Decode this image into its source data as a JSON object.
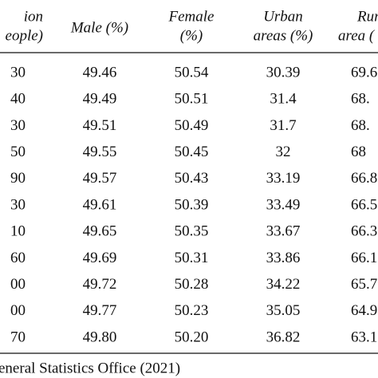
{
  "table": {
    "header": [
      [
        "ion",
        "eople)"
      ],
      [
        "Male (%)"
      ],
      [
        "Female",
        "(%)"
      ],
      [
        "Urban",
        "areas (%)"
      ],
      [
        "Rur",
        "area ("
      ]
    ],
    "rows": [
      [
        "30",
        "49.46",
        "50.54",
        "30.39",
        "69.6"
      ],
      [
        "40",
        "49.49",
        "50.51",
        "31.4",
        "68."
      ],
      [
        "30",
        "49.51",
        "50.49",
        "31.7",
        "68."
      ],
      [
        "50",
        "49.55",
        "50.45",
        "32",
        "68"
      ],
      [
        "90",
        "49.57",
        "50.43",
        "33.19",
        "66.8"
      ],
      [
        "30",
        "49.61",
        "50.39",
        "33.49",
        "66.5"
      ],
      [
        "10",
        "49.65",
        "50.35",
        "33.67",
        "66.3"
      ],
      [
        "60",
        "49.69",
        "50.31",
        "33.86",
        "66.1"
      ],
      [
        "00",
        "49.72",
        "50.28",
        "34.22",
        "65.7"
      ],
      [
        "00",
        "49.77",
        "50.23",
        "35.05",
        "64.9"
      ],
      [
        "70",
        "49.80",
        "50.20",
        "36.82",
        "63.1"
      ]
    ],
    "source": "eneral Statistics Office (2021)"
  }
}
